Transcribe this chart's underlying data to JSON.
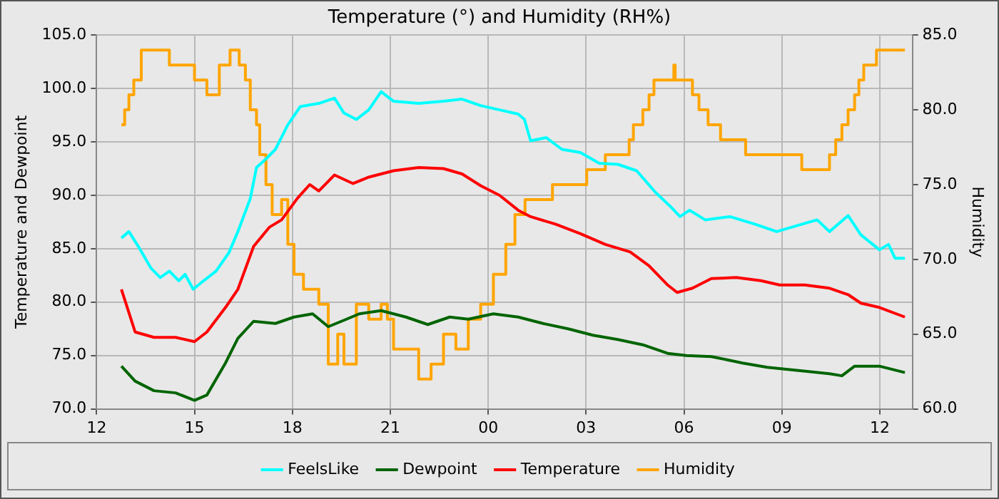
{
  "chart_data": {
    "type": "line",
    "title": "Temperature (°) and Humidity (RH%)",
    "ylabel": "Temperature and Dewpoint",
    "y2label": "Humidity",
    "xlim": [
      12,
      37
    ],
    "xticks": [
      {
        "value": 12,
        "label": "12"
      },
      {
        "value": 15,
        "label": "15"
      },
      {
        "value": 18,
        "label": "18"
      },
      {
        "value": 21,
        "label": "21"
      },
      {
        "value": 24,
        "label": "00"
      },
      {
        "value": 27,
        "label": "03"
      },
      {
        "value": 30,
        "label": "06"
      },
      {
        "value": 33,
        "label": "09"
      },
      {
        "value": 36,
        "label": "12"
      }
    ],
    "ylim": [
      70,
      105
    ],
    "yticks": [
      {
        "value": 70,
        "label": "70.0"
      },
      {
        "value": 75,
        "label": "75.0"
      },
      {
        "value": 80,
        "label": "80.0"
      },
      {
        "value": 85,
        "label": "85.0"
      },
      {
        "value": 90,
        "label": "90.0"
      },
      {
        "value": 95,
        "label": "95.0"
      },
      {
        "value": 100,
        "label": "100.0"
      },
      {
        "value": 105,
        "label": "105.0"
      }
    ],
    "y2lim": [
      60,
      85
    ],
    "y2ticks": [
      {
        "value": 60,
        "label": "60.0"
      },
      {
        "value": 65,
        "label": "65.0"
      },
      {
        "value": 70,
        "label": "70.0"
      },
      {
        "value": 75,
        "label": "75.0"
      },
      {
        "value": 80,
        "label": "80.0"
      },
      {
        "value": 85,
        "label": "85.0"
      }
    ],
    "grid": true,
    "legend": "bottom",
    "marker": "none",
    "series": [
      {
        "name": "FeelsLike",
        "color": "#00ffff",
        "x": [
          12.76,
          12.99,
          13.28,
          13.66,
          13.95,
          14.23,
          14.52,
          14.71,
          14.96,
          15.28,
          15.66,
          16.05,
          16.33,
          16.71,
          16.9,
          17.19,
          17.48,
          17.86,
          18.24,
          18.81,
          19.29,
          19.58,
          19.96,
          20.34,
          20.72,
          21.1,
          21.87,
          22.63,
          23.2,
          23.77,
          24.35,
          24.92,
          25.11,
          25.3,
          25.78,
          26.26,
          26.83,
          27.4,
          27.97,
          28.55,
          29.12,
          29.6,
          29.88,
          30.17,
          30.65,
          31.41,
          32.17,
          32.84,
          33.51,
          34.08,
          34.46,
          35.03,
          35.42,
          35.99,
          36.27,
          36.47,
          36.77
        ],
        "values": [
          86.0,
          86.6,
          85.2,
          83.2,
          82.3,
          82.9,
          82.0,
          82.6,
          81.2,
          82.0,
          82.9,
          84.6,
          86.6,
          89.7,
          92.6,
          93.4,
          94.3,
          96.6,
          98.3,
          98.6,
          99.1,
          97.7,
          97.1,
          98.0,
          99.7,
          98.8,
          98.6,
          98.8,
          99.0,
          98.4,
          98.0,
          97.6,
          97.1,
          95.1,
          95.4,
          94.3,
          94.0,
          93.0,
          92.9,
          92.3,
          90.3,
          88.9,
          88.0,
          88.6,
          87.7,
          88.0,
          87.3,
          86.6,
          87.2,
          87.7,
          86.6,
          88.1,
          86.3,
          84.9,
          85.4,
          84.1,
          84.1
        ]
      },
      {
        "name": "Dewpoint",
        "color": "#006400",
        "x": [
          12.76,
          13.18,
          13.76,
          14.42,
          15.0,
          15.38,
          15.95,
          16.33,
          16.81,
          17.48,
          18.05,
          18.62,
          19.1,
          19.58,
          20.05,
          20.72,
          21.48,
          22.15,
          22.82,
          23.39,
          24.16,
          24.92,
          25.68,
          26.45,
          27.21,
          27.97,
          28.74,
          29.5,
          30.07,
          30.84,
          31.79,
          32.55,
          33.51,
          34.46,
          34.84,
          35.23,
          35.99,
          36.77
        ],
        "values": [
          74.0,
          72.6,
          71.7,
          71.5,
          70.8,
          71.3,
          74.3,
          76.6,
          78.2,
          78.0,
          78.6,
          78.9,
          77.7,
          78.3,
          78.9,
          79.2,
          78.6,
          77.9,
          78.6,
          78.4,
          78.9,
          78.6,
          78.0,
          77.5,
          76.9,
          76.5,
          76.0,
          75.2,
          75.0,
          74.9,
          74.3,
          73.9,
          73.6,
          73.3,
          73.1,
          74.0,
          74.0,
          73.4
        ]
      },
      {
        "name": "Temperature",
        "color": "#ff0000",
        "x": [
          12.76,
          13.18,
          13.76,
          14.42,
          15.0,
          15.38,
          15.95,
          16.33,
          16.81,
          17.29,
          17.67,
          18.15,
          18.53,
          18.81,
          19.29,
          19.86,
          20.34,
          21.1,
          21.87,
          22.63,
          23.2,
          23.77,
          24.35,
          24.92,
          25.3,
          26.06,
          26.83,
          27.59,
          28.35,
          28.93,
          29.5,
          29.79,
          30.26,
          30.84,
          31.6,
          32.36,
          32.93,
          33.7,
          34.46,
          35.03,
          35.42,
          35.99,
          36.77
        ],
        "values": [
          81.2,
          77.2,
          76.7,
          76.7,
          76.3,
          77.2,
          79.5,
          81.2,
          85.2,
          87.0,
          87.7,
          89.7,
          91.0,
          90.4,
          91.9,
          91.1,
          91.7,
          92.3,
          92.6,
          92.5,
          92.0,
          90.9,
          90.0,
          88.6,
          88.0,
          87.3,
          86.4,
          85.4,
          84.7,
          83.4,
          81.6,
          80.9,
          81.3,
          82.2,
          82.3,
          82.0,
          81.6,
          81.6,
          81.3,
          80.7,
          79.9,
          79.5,
          78.6
        ]
      },
      {
        "name": "Humidity",
        "color": "#ffa500",
        "type": "step",
        "axis": "y2",
        "x": [
          12.76,
          12.86,
          12.99,
          13.14,
          13.37,
          14.23,
          15.0,
          15.38,
          15.76,
          16.09,
          16.37,
          16.56,
          16.71,
          16.9,
          17.0,
          17.19,
          17.38,
          17.67,
          17.86,
          18.05,
          18.34,
          18.81,
          19.1,
          19.39,
          19.58,
          19.96,
          20.34,
          20.72,
          20.91,
          21.1,
          21.87,
          22.25,
          22.63,
          23.01,
          23.39,
          23.77,
          24.16,
          24.54,
          24.82,
          25.13,
          25.97,
          27.02,
          27.59,
          28.32,
          28.45,
          28.74,
          28.93,
          29.08,
          29.69,
          29.73,
          30.26,
          30.46,
          30.74,
          31.12,
          31.89,
          33.61,
          34.46,
          34.65,
          34.84,
          35.03,
          35.23,
          35.36,
          35.51,
          35.9,
          36.77
        ],
        "values": [
          79,
          80,
          81,
          82,
          84,
          83,
          82,
          81,
          83,
          84,
          83,
          82,
          80,
          79,
          77,
          75,
          73,
          74,
          71,
          69,
          68,
          67,
          63,
          65,
          63,
          67,
          66,
          67,
          66,
          64,
          62,
          63,
          65,
          64,
          66,
          67,
          69,
          71,
          73,
          74,
          75,
          76,
          77,
          78,
          79,
          80,
          81,
          82,
          83,
          82,
          81,
          80,
          79,
          78,
          77,
          76,
          77,
          78,
          79,
          80,
          81,
          82,
          83,
          84,
          84
        ]
      }
    ]
  }
}
